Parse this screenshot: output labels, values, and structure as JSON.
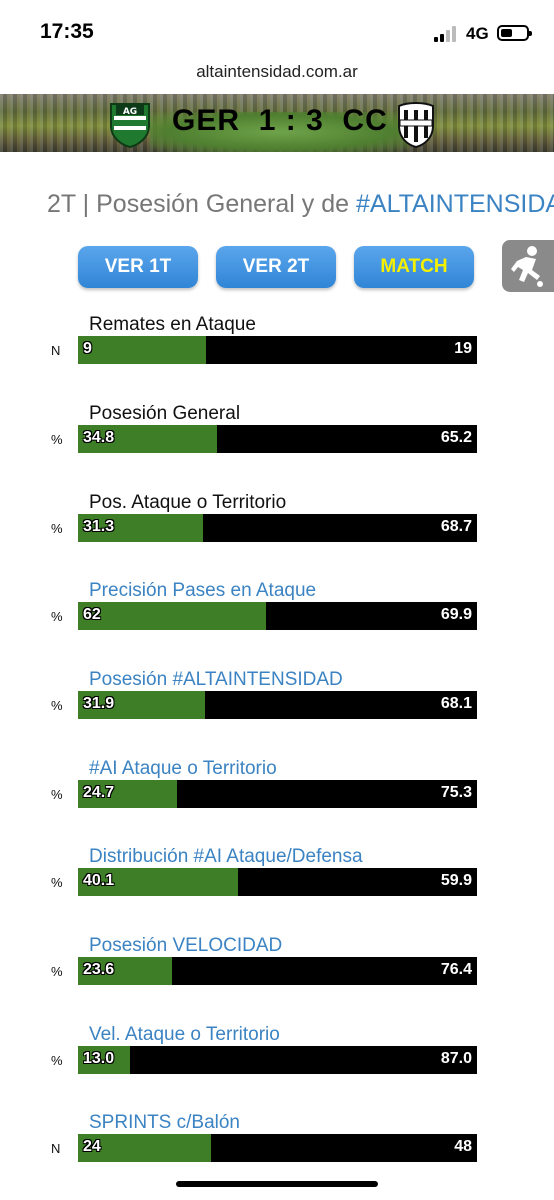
{
  "status_bar": {
    "time": "17:35",
    "network": "4G"
  },
  "browser": {
    "url": "altaintensidad.com.ar"
  },
  "scoreboard": {
    "home": "GER",
    "home_score": "1",
    "separator": ":",
    "away_score": "3",
    "away": "CC"
  },
  "page": {
    "title_prefix": "2T | Posesión General y de ",
    "title_hashtag": "#ALTAINTENSIDAD"
  },
  "buttons": {
    "first_half": "VER 1T",
    "second_half": "VER 2T",
    "match": "MATCH"
  },
  "colors": {
    "home": "#3e7e26",
    "away": "#000000",
    "accent": "#3b83c2",
    "match_text": "#f4f000"
  },
  "metrics": [
    {
      "label": "Remates en Ataque",
      "unit": "N",
      "home": "9",
      "away": "19",
      "home_share": 0.321,
      "style": "plain"
    },
    {
      "label": "Posesión General",
      "unit": "%",
      "home": "34.8",
      "away": "65.2",
      "home_share": 0.348,
      "style": "plain"
    },
    {
      "label": "Pos. Ataque o Territorio",
      "unit": "%",
      "home": "31.3",
      "away": "68.7",
      "home_share": 0.313,
      "style": "plain"
    },
    {
      "label": "Precisión Pases en Ataque",
      "unit": "%",
      "home": "62",
      "away": "69.9",
      "home_share": 0.47,
      "style": "blue"
    },
    {
      "label": "Posesión #ALTAINTENSIDAD",
      "unit": "%",
      "home": "31.9",
      "away": "68.1",
      "home_share": 0.319,
      "style": "blue"
    },
    {
      "label": "#AI Ataque o Territorio",
      "unit": "%",
      "home": "24.7",
      "away": "75.3",
      "home_share": 0.247,
      "style": "blue"
    },
    {
      "label": "Distribución #AI Ataque/Defensa",
      "unit": "%",
      "home": "40.1",
      "away": "59.9",
      "home_share": 0.401,
      "style": "blue"
    },
    {
      "label": "Posesión VELOCIDAD",
      "unit": "%",
      "home": "23.6",
      "away": "76.4",
      "home_share": 0.236,
      "style": "blue"
    },
    {
      "label": "Vel. Ataque o Territorio",
      "unit": "%",
      "home": "13.0",
      "away": "87.0",
      "home_share": 0.13,
      "style": "blue"
    },
    {
      "label": "SPRINTS c/Balón",
      "unit": "N",
      "home": "24",
      "away": "48",
      "home_share": 0.333,
      "style": "blue"
    }
  ]
}
